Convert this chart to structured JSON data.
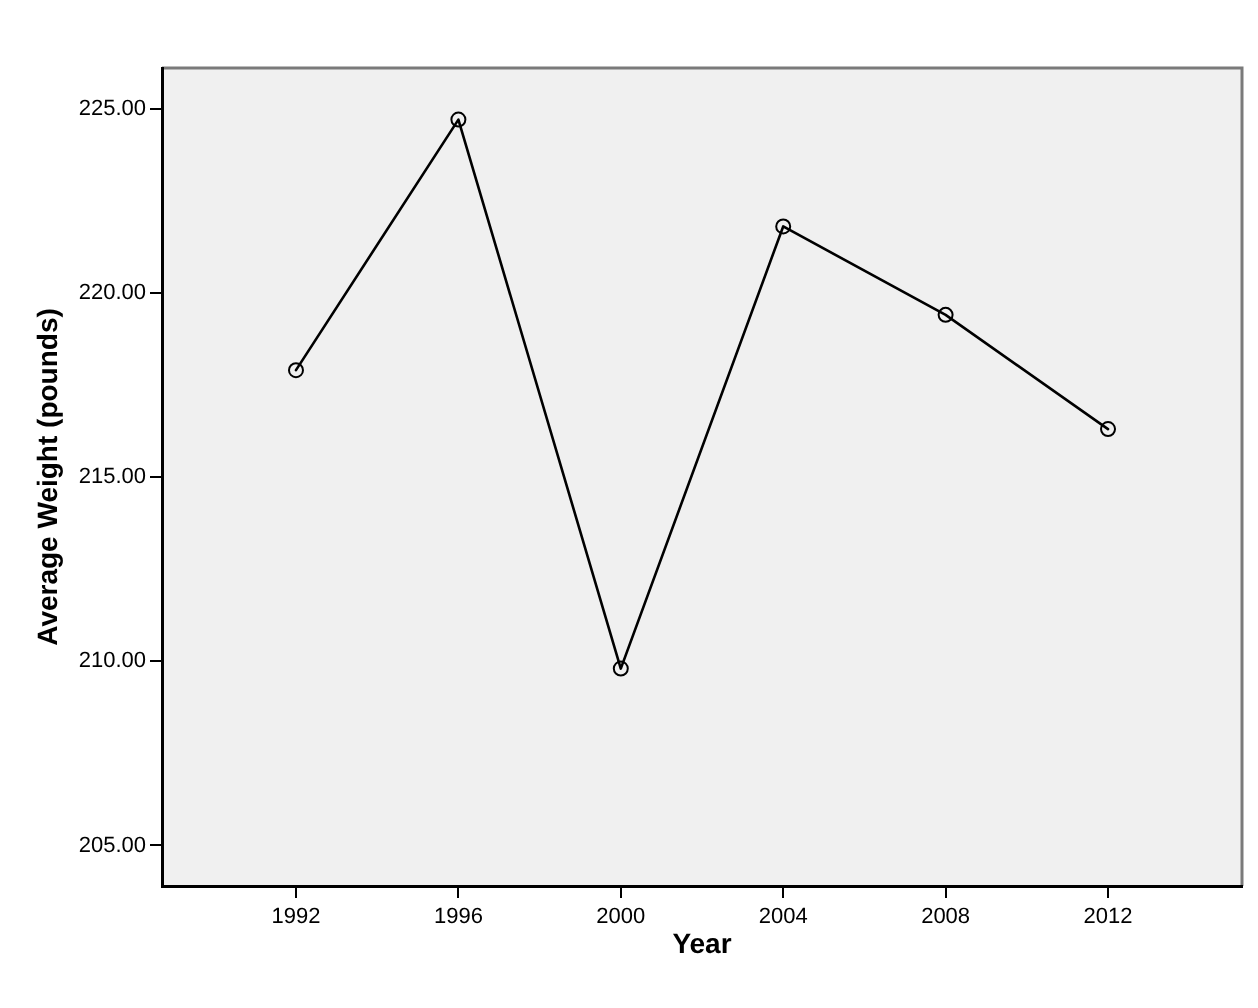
{
  "chart_data": {
    "type": "line",
    "xlabel": "Year",
    "ylabel": "Average Weight (pounds)",
    "x": [
      1992,
      1996,
      2000,
      2004,
      2008,
      2012
    ],
    "series": [
      {
        "color": "#000000",
        "values": [
          217.9,
          224.7,
          209.8,
          221.8,
          219.4,
          216.3
        ]
      }
    ],
    "xlim": [
      1988.7,
      2015.3
    ],
    "xticks": [
      1992,
      1996,
      2000,
      2004,
      2008,
      2012
    ],
    "ylim": [
      203.9,
      226.1
    ],
    "yticks": [
      {
        "value": 205,
        "label": "205.00"
      },
      {
        "value": 210,
        "label": "210.00"
      },
      {
        "value": 215,
        "label": "215.00"
      },
      {
        "value": 220,
        "label": "220.00"
      },
      {
        "value": 225,
        "label": "225.00"
      }
    ],
    "marker": "circle",
    "line_style": "solid",
    "legend": false
  }
}
